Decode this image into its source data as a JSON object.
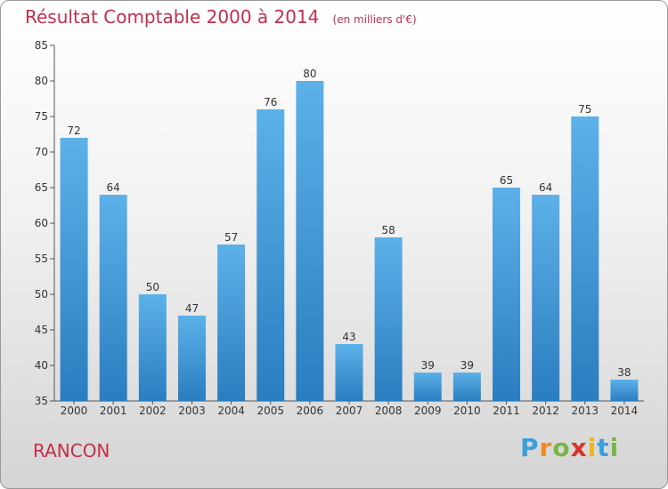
{
  "header": {
    "title": "Résultat Comptable 2000 à 2014",
    "subtitle": "(en milliers d'€)"
  },
  "footer": {
    "town": "RANCON",
    "brand": {
      "letters": [
        "P",
        "r",
        "o",
        "x",
        "i",
        "t",
        "i"
      ],
      "colors": [
        "#3aa0dc",
        "#f08c1e",
        "#7ab648",
        "#d9342b",
        "#f0b41e",
        "#3aa0dc",
        "#7ab648"
      ]
    }
  },
  "chart_data": {
    "type": "bar",
    "title": "Résultat Comptable 2000 à 2014",
    "subtitle": "(en milliers d'€)",
    "categories": [
      "2000",
      "2001",
      "2002",
      "2003",
      "2004",
      "2005",
      "2006",
      "2007",
      "2008",
      "2009",
      "2010",
      "2011",
      "2012",
      "2013",
      "2014"
    ],
    "values": [
      72,
      64,
      50,
      47,
      57,
      76,
      80,
      43,
      58,
      39,
      39,
      65,
      64,
      75,
      38
    ],
    "ylim": [
      35,
      85
    ],
    "yticks": [
      35,
      40,
      45,
      50,
      55,
      60,
      65,
      70,
      75,
      80,
      85
    ],
    "grid": false,
    "colors": {
      "bar_top": "#5db1e9",
      "bar_bottom": "#2a7dbf",
      "axis": "#555555",
      "label": "#333333"
    }
  }
}
